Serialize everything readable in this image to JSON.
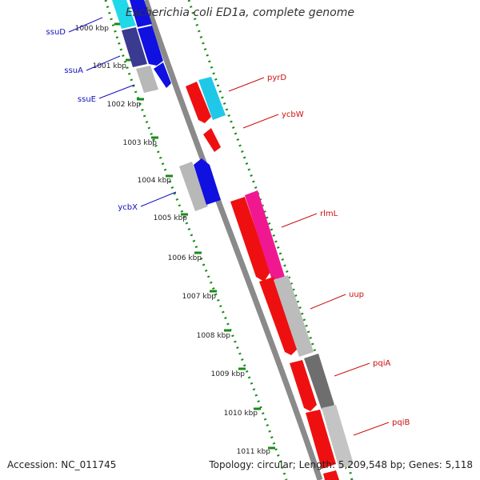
{
  "title": "Escherichia coli ED1a, complete genome",
  "footer": {
    "accession": "Accession: NC_011745",
    "summary": "Topology: circular; Length: 5,209,548 bp; Genes: 5,118"
  },
  "colors": {
    "backbone": "#8a8a8a",
    "tick": "#1a8a1a",
    "blue_text": "#1010c0",
    "red_text": "#cc1010"
  },
  "kbp_labels": [
    "1000 kbp",
    "1001 kbp",
    "1002 kbp",
    "1003 kbp",
    "1004 kbp",
    "1005 kbp",
    "1006 kbp",
    "1007 kbp",
    "1008 kbp",
    "1009 kbp",
    "1010 kbp",
    "1011 kbp"
  ],
  "genes": [
    {
      "name": "ssuD",
      "side": "left"
    },
    {
      "name": "ssuA",
      "side": "left"
    },
    {
      "name": "ssuE",
      "side": "left"
    },
    {
      "name": "ycbX",
      "side": "left"
    },
    {
      "name": "pyrD",
      "side": "right"
    },
    {
      "name": "ycbW",
      "side": "right"
    },
    {
      "name": "rlmL",
      "side": "right"
    },
    {
      "name": "uup",
      "side": "right"
    },
    {
      "name": "pqiA",
      "side": "right"
    },
    {
      "name": "pqiB",
      "side": "right"
    }
  ]
}
